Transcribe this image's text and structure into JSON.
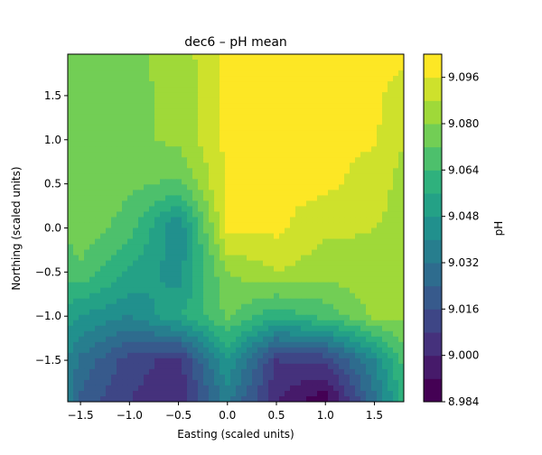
{
  "chart_data": {
    "type": "heatmap",
    "subtype": "filled-contour",
    "title": "dec6 – pH mean",
    "xlabel": "Easting (scaled units)",
    "ylabel": "Northing (scaled units)",
    "xlim": [
      -1.63,
      1.8
    ],
    "ylim": [
      -1.97,
      1.97
    ],
    "xticks": [
      -1.5,
      -1.0,
      -0.5,
      0.0,
      0.5,
      1.0,
      1.5
    ],
    "xtick_labels": [
      "−1.5",
      "−1.0",
      "−0.5",
      "0.0",
      "0.5",
      "1.0",
      "1.5"
    ],
    "yticks": [
      -1.5,
      -1.0,
      -0.5,
      0.0,
      0.5,
      1.0,
      1.5
    ],
    "ytick_labels": [
      "−1.5",
      "−1.0",
      "−0.5",
      "0.0",
      "0.5",
      "1.0",
      "1.5"
    ],
    "grid": false,
    "colorbar": {
      "label": "pH",
      "colormap": "viridis",
      "range": [
        8.984,
        9.104
      ],
      "ticks": [
        8.984,
        9.0,
        9.016,
        9.032,
        9.048,
        9.064,
        9.08,
        9.096
      ],
      "tick_labels": [
        "8.984",
        "9.000",
        "9.016",
        "9.032",
        "9.048",
        "9.064",
        "9.080",
        "9.096"
      ],
      "level_step": 0.008
    },
    "grid_x": [
      -1.63,
      -1.5,
      -1.0,
      -0.5,
      0.0,
      0.5,
      1.0,
      1.5,
      1.8
    ],
    "grid_y": [
      1.97,
      1.5,
      1.0,
      0.5,
      0.0,
      -0.5,
      -1.0,
      -1.5,
      -1.97
    ],
    "z": [
      [
        9.078,
        9.078,
        9.078,
        9.083,
        9.098,
        9.098,
        9.098,
        9.098,
        9.098
      ],
      [
        9.078,
        9.078,
        9.078,
        9.082,
        9.098,
        9.098,
        9.098,
        9.098,
        9.092
      ],
      [
        9.078,
        9.078,
        9.078,
        9.082,
        9.098,
        9.098,
        9.098,
        9.097,
        9.088
      ],
      [
        9.076,
        9.078,
        9.074,
        9.07,
        9.098,
        9.098,
        9.098,
        9.092,
        9.085
      ],
      [
        9.074,
        9.078,
        9.068,
        9.04,
        9.098,
        9.098,
        9.09,
        9.088,
        9.085
      ],
      [
        9.066,
        9.07,
        9.055,
        9.044,
        9.08,
        9.088,
        9.083,
        9.085,
        9.083
      ],
      [
        9.052,
        9.048,
        9.04,
        9.055,
        9.073,
        9.058,
        9.067,
        9.082,
        9.082
      ],
      [
        9.04,
        9.03,
        9.012,
        9.005,
        9.048,
        9.008,
        9.01,
        9.04,
        9.068
      ],
      [
        9.036,
        9.022,
        9.008,
        9.0,
        9.035,
        9.0,
        8.986,
        9.03,
        9.058
      ]
    ]
  }
}
